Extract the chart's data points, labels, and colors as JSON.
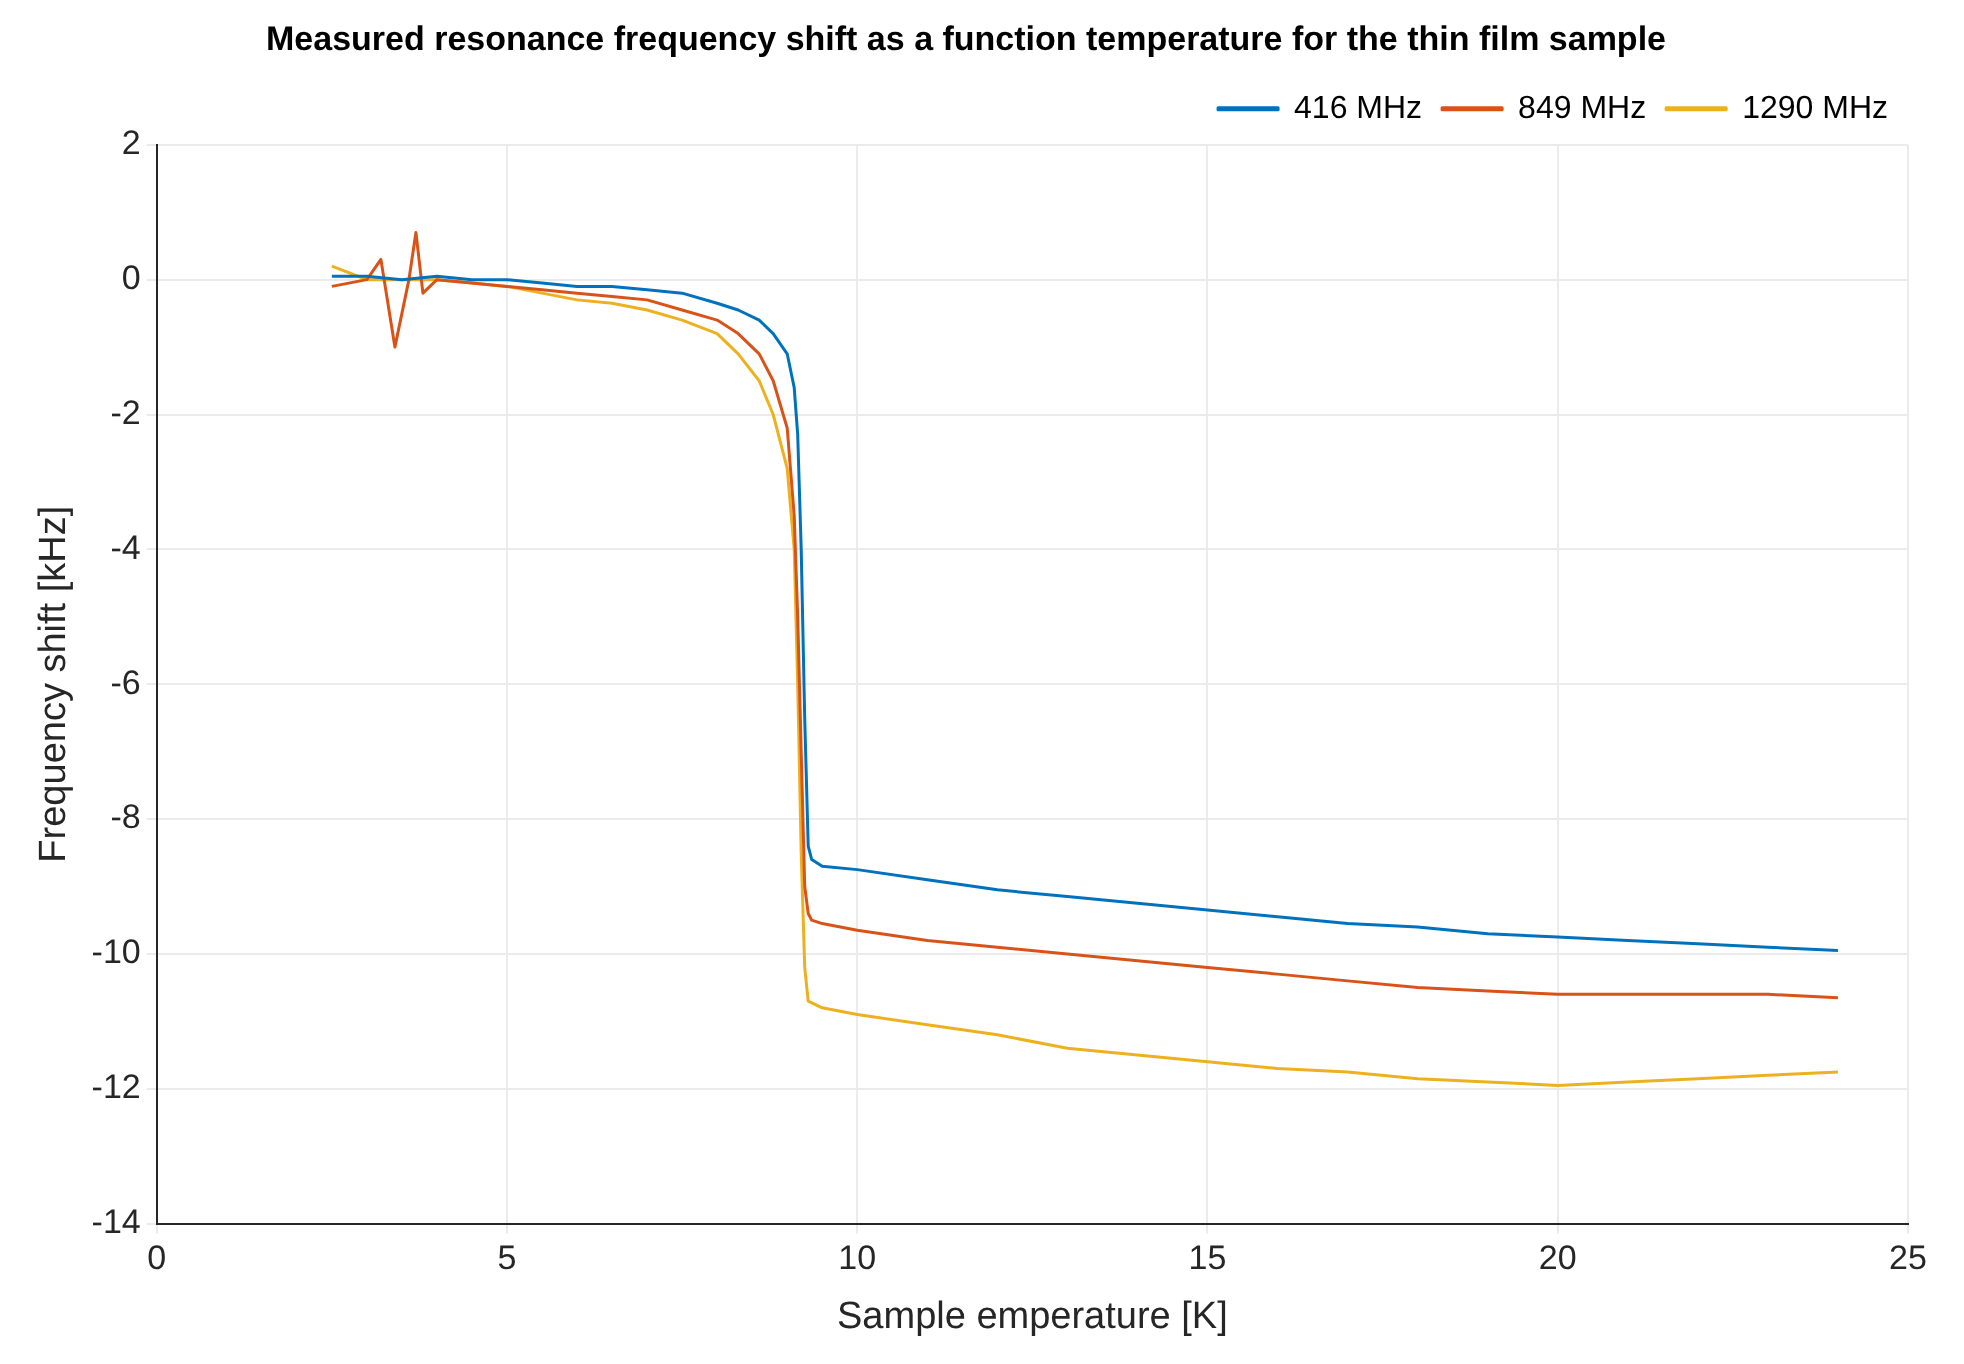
{
  "chart_data": {
    "type": "line",
    "title": "Measured resonance frequency shift as a function temperature for the thin film sample",
    "xlabel": "Sample emperature [K]",
    "ylabel": "Frequency shift [kHz]",
    "xlim": [
      0,
      25
    ],
    "xticks": [
      0,
      5,
      10,
      15,
      20,
      25
    ],
    "ylim": [
      -14,
      2
    ],
    "yticks": [
      -14,
      -12,
      -10,
      -8,
      -6,
      -4,
      -2,
      0,
      2
    ],
    "grid": true,
    "legend": "top right",
    "marker": "none",
    "line_style": "solid",
    "series": [
      {
        "name": "416 MHz",
        "color": "#0072bd",
        "x": [
          2.5,
          3,
          3.5,
          4,
          4.5,
          5,
          5.5,
          6,
          6.5,
          7,
          7.5,
          8,
          8.3,
          8.6,
          8.8,
          9,
          9.1,
          9.15,
          9.2,
          9.25,
          9.3,
          9.35,
          9.5,
          10,
          11,
          12,
          13,
          14,
          15,
          16,
          17,
          18,
          19,
          20,
          21,
          22,
          23,
          24
        ],
        "values": [
          0.05,
          0.05,
          0,
          0.05,
          0,
          0,
          -0.05,
          -0.1,
          -0.1,
          -0.15,
          -0.2,
          -0.35,
          -0.45,
          -0.6,
          -0.8,
          -1.1,
          -1.6,
          -2.3,
          -4,
          -6.5,
          -8.4,
          -8.6,
          -8.7,
          -8.75,
          -8.9,
          -9.05,
          -9.15,
          -9.25,
          -9.35,
          -9.45,
          -9.55,
          -9.6,
          -9.7,
          -9.75,
          -9.8,
          -9.85,
          -9.9,
          -9.95
        ]
      },
      {
        "name": "849 MHz",
        "color": "#d95319",
        "x": [
          2.5,
          3,
          3.2,
          3.4,
          3.6,
          3.7,
          3.8,
          4,
          4.5,
          5,
          5.5,
          6,
          6.5,
          7,
          7.5,
          8,
          8.3,
          8.6,
          8.8,
          9,
          9.1,
          9.15,
          9.2,
          9.25,
          9.3,
          9.35,
          9.5,
          10,
          11,
          12,
          13,
          14,
          15,
          16,
          17,
          18,
          19,
          20,
          21,
          22,
          23,
          24
        ],
        "values": [
          -0.1,
          0,
          0.3,
          -1,
          0,
          0.7,
          -0.2,
          0,
          -0.05,
          -0.1,
          -0.15,
          -0.2,
          -0.25,
          -0.3,
          -0.45,
          -0.6,
          -0.8,
          -1.1,
          -1.5,
          -2.2,
          -3.5,
          -5,
          -7,
          -9,
          -9.4,
          -9.5,
          -9.55,
          -9.65,
          -9.8,
          -9.9,
          -10,
          -10.1,
          -10.2,
          -10.3,
          -10.4,
          -10.5,
          -10.55,
          -10.6,
          -10.6,
          -10.6,
          -10.6,
          -10.65
        ]
      },
      {
        "name": "1290 MHz",
        "color": "#edb120",
        "x": [
          2.5,
          3,
          3.5,
          4,
          4.5,
          5,
          5.5,
          6,
          6.5,
          7,
          7.5,
          8,
          8.3,
          8.6,
          8.8,
          9,
          9.1,
          9.15,
          9.2,
          9.25,
          9.3,
          9.5,
          10,
          11,
          12,
          13,
          14,
          15,
          16,
          17,
          18,
          19,
          20,
          21,
          22,
          23,
          24
        ],
        "values": [
          0.2,
          0,
          0,
          0,
          -0.05,
          -0.1,
          -0.2,
          -0.3,
          -0.35,
          -0.45,
          -0.6,
          -0.8,
          -1.1,
          -1.5,
          -2,
          -2.8,
          -4,
          -6,
          -8.5,
          -10.2,
          -10.7,
          -10.8,
          -10.9,
          -11.05,
          -11.2,
          -11.4,
          -11.5,
          -11.6,
          -11.7,
          -11.75,
          -11.85,
          -11.9,
          -11.95,
          -11.9,
          -11.85,
          -11.8,
          -11.75
        ]
      }
    ]
  }
}
